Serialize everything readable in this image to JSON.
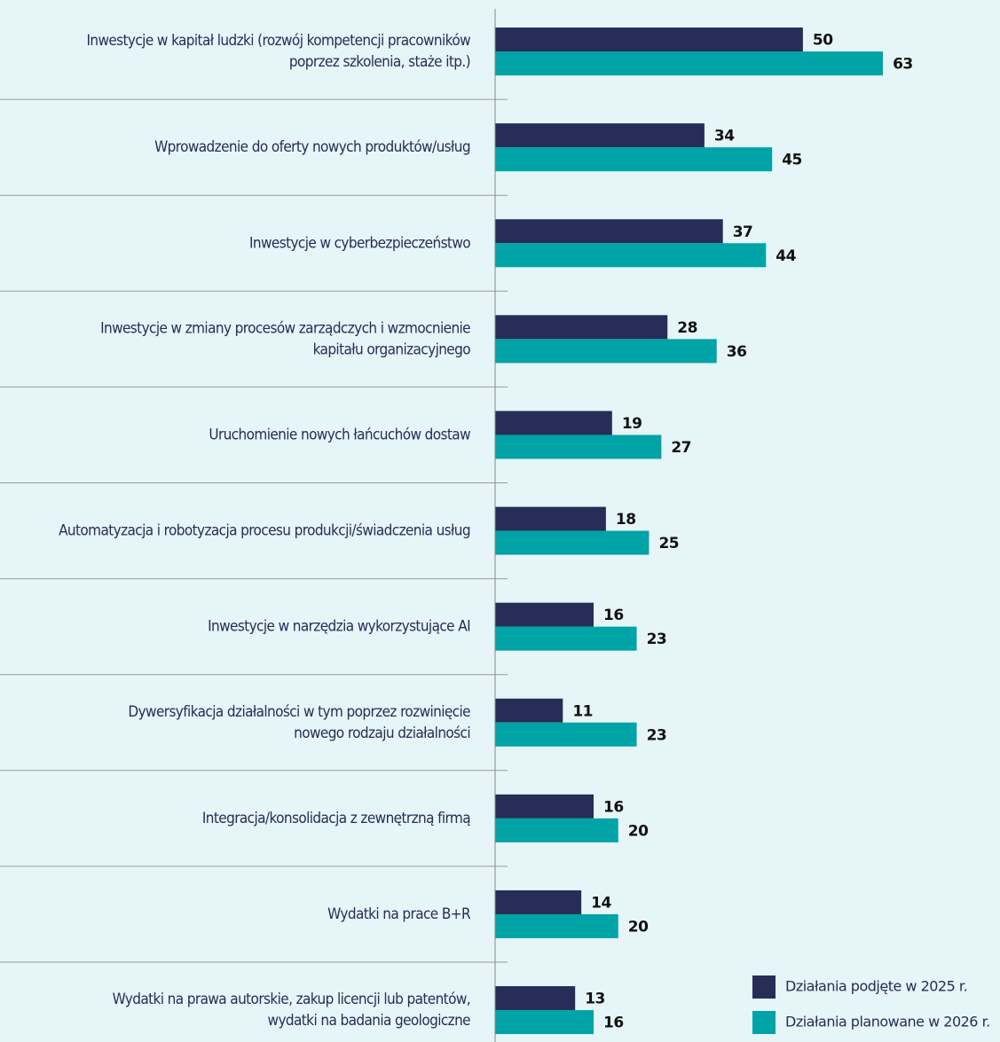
{
  "chart_data": {
    "type": "bar",
    "orientation": "horizontal",
    "categories": [
      [
        "Inwestycje w kapitał ludzki (rozwój kompetencji pracowników",
        "poprzez szkolenia, staże itp.)"
      ],
      [
        "Wprowadzenie do oferty nowych produktów/usług"
      ],
      [
        "Inwestycje w cyberbezpieczeństwo"
      ],
      [
        "Inwestycje w zmiany procesów zarządczych i wzmocnienie",
        "kapitału organizacyjnego"
      ],
      [
        "Uruchomienie nowych łańcuchów dostaw"
      ],
      [
        "Automatyzacja i robotyzacja procesu produkcji/świadczenia usług"
      ],
      [
        "Inwestycje w narzędzia wykorzystujące AI"
      ],
      [
        "Dywersyfikacja działalności w tym poprzez rozwinięcie",
        "nowego rodzaju działalności"
      ],
      [
        "Integracja/konsolidacja z zewnętrzną firmą"
      ],
      [
        "Wydatki na prace B+R"
      ],
      [
        "Wydatki na prawa autorskie, zakup licencji lub patentów,",
        "wydatki na badania geologiczne"
      ]
    ],
    "series": [
      {
        "name": "Działania podjęte w 2025 r.",
        "color": "#262d57",
        "values": [
          50,
          34,
          37,
          28,
          19,
          18,
          16,
          11,
          16,
          14,
          13
        ]
      },
      {
        "name": "Działania planowane w 2026 r.",
        "color": "#00a3a6",
        "values": [
          63,
          45,
          44,
          36,
          27,
          25,
          23,
          23,
          20,
          20,
          16
        ]
      }
    ],
    "xlim": [
      0,
      80
    ],
    "legend": "bottom-right"
  }
}
